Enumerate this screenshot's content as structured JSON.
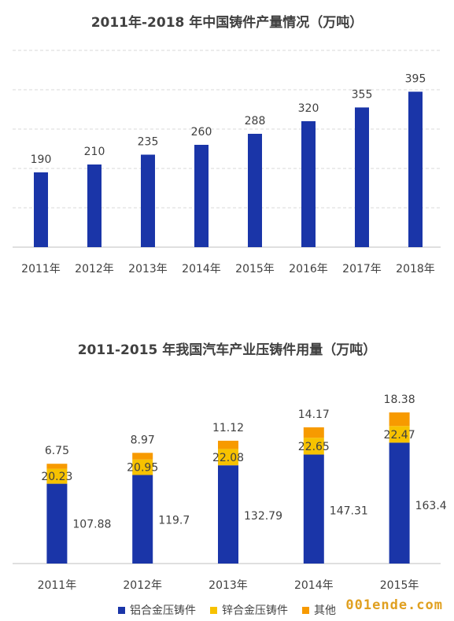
{
  "chart_data": [
    {
      "type": "bar",
      "title": "2011年-2018 年中国铸件产量情况（万吨）",
      "categories": [
        "2011年",
        "2012年",
        "2013年",
        "2014年",
        "2015年",
        "2016年",
        "2017年",
        "2018年"
      ],
      "values": [
        190,
        210,
        235,
        260,
        288,
        320,
        355,
        395
      ],
      "ylim": [
        0,
        500
      ],
      "grid": true,
      "bar_color": "#1a35a8"
    },
    {
      "type": "bar",
      "stacked": true,
      "title": "2011-2015 年我国汽车产业压铸件用量（万吨）",
      "categories": [
        "2011年",
        "2012年",
        "2013年",
        "2014年",
        "2015年"
      ],
      "series": [
        {
          "name": "铝合金压铸件",
          "values": [
            107.88,
            119.7,
            132.79,
            147.31,
            163.4
          ],
          "color": "#1a35a8"
        },
        {
          "name": "锌合金压铸件",
          "values": [
            20.23,
            20.95,
            22.08,
            22.65,
            22.47
          ],
          "color": "#f7c200"
        },
        {
          "name": "其他",
          "values": [
            6.75,
            8.97,
            11.12,
            14.17,
            18.38
          ],
          "color": "#f79a00"
        }
      ],
      "legend": "bottom"
    }
  ],
  "watermark": "001ende.com"
}
